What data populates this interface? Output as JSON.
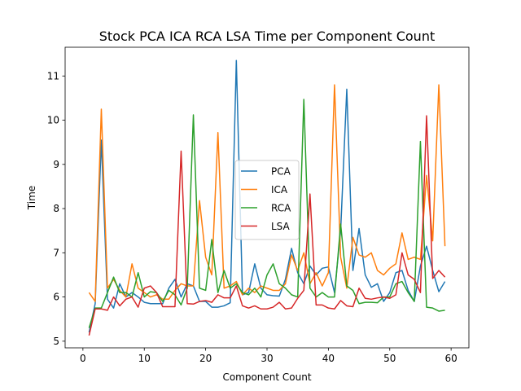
{
  "chart_data": {
    "type": "line",
    "title": "Stock PCA ICA RCA LSA Time per Component Count",
    "xlabel": "Component Count",
    "ylabel": "Time",
    "xlim": [
      -2.9,
      62.9
    ],
    "ylim": [
      4.85,
      11.65
    ],
    "xticks": [
      0,
      10,
      20,
      30,
      40,
      50,
      60
    ],
    "yticks": [
      5,
      6,
      7,
      8,
      9,
      10,
      11
    ],
    "grid": false,
    "legend_position": "center",
    "x": [
      1,
      2,
      3,
      4,
      5,
      6,
      7,
      8,
      9,
      10,
      11,
      12,
      13,
      14,
      15,
      16,
      17,
      18,
      19,
      20,
      21,
      22,
      23,
      24,
      25,
      26,
      27,
      28,
      29,
      30,
      31,
      32,
      33,
      34,
      35,
      36,
      37,
      38,
      39,
      40,
      41,
      42,
      43,
      44,
      45,
      46,
      47,
      48,
      49,
      50,
      51,
      52,
      53,
      54,
      55,
      56,
      57,
      58,
      59
    ],
    "series": [
      {
        "name": "PCA",
        "color": "#1f77b4",
        "values": [
          5.2,
          5.85,
          9.55,
          5.95,
          5.75,
          6.3,
          6.0,
          6.1,
          6.0,
          5.88,
          5.85,
          5.85,
          5.85,
          6.2,
          6.4,
          6.0,
          6.3,
          6.25,
          5.9,
          5.9,
          5.77,
          5.77,
          5.8,
          5.87,
          11.35,
          6.05,
          6.1,
          6.75,
          6.2,
          6.05,
          6.03,
          6.02,
          6.4,
          7.1,
          6.55,
          6.3,
          6.7,
          6.5,
          6.65,
          6.68,
          6.1,
          7.5,
          10.7,
          6.6,
          7.55,
          6.5,
          6.22,
          6.3,
          5.9,
          6.1,
          6.55,
          6.6,
          6.15,
          5.9,
          6.7,
          7.15,
          6.6,
          6.12,
          6.35
        ]
      },
      {
        "name": "ICA",
        "color": "#ff7f0e",
        "values": [
          6.1,
          5.9,
          10.25,
          6.2,
          6.4,
          6.15,
          6.0,
          6.75,
          6.2,
          6.1,
          6.0,
          6.05,
          5.95,
          5.95,
          6.15,
          6.3,
          6.25,
          6.25,
          8.18,
          6.9,
          6.5,
          9.72,
          6.2,
          6.25,
          6.35,
          6.05,
          6.2,
          6.1,
          6.25,
          6.2,
          6.15,
          6.15,
          6.3,
          6.95,
          6.6,
          7.0,
          6.3,
          6.55,
          6.25,
          6.55,
          10.8,
          6.9,
          6.2,
          7.35,
          6.95,
          6.9,
          7.0,
          6.6,
          6.5,
          6.65,
          6.75,
          7.45,
          6.85,
          6.9,
          6.85,
          8.75,
          7.27,
          10.8,
          7.15
        ]
      },
      {
        "name": "RCA",
        "color": "#2ca02c",
        "values": [
          5.3,
          5.75,
          5.75,
          6.1,
          6.45,
          6.1,
          6.1,
          6.0,
          6.55,
          6.0,
          6.12,
          6.1,
          5.9,
          6.15,
          6.05,
          5.82,
          6.2,
          10.12,
          6.2,
          6.15,
          7.3,
          6.1,
          6.6,
          6.2,
          6.3,
          6.1,
          6.05,
          6.2,
          6.0,
          6.5,
          6.75,
          6.3,
          6.2,
          6.05,
          6.0,
          10.47,
          6.2,
          6.0,
          6.1,
          6.0,
          6.0,
          7.65,
          6.25,
          6.15,
          5.85,
          5.88,
          5.88,
          5.87,
          6.0,
          6.0,
          6.3,
          6.35,
          6.1,
          5.9,
          9.52,
          5.77,
          5.75,
          5.68,
          5.7
        ]
      },
      {
        "name": "LSA",
        "color": "#d62728",
        "values": [
          5.13,
          5.73,
          5.73,
          5.7,
          6.0,
          5.8,
          5.95,
          6.0,
          5.77,
          6.2,
          6.25,
          6.1,
          5.78,
          5.78,
          5.78,
          9.3,
          5.85,
          5.84,
          5.9,
          5.92,
          5.88,
          6.05,
          5.98,
          5.98,
          6.25,
          5.8,
          5.75,
          5.8,
          5.73,
          5.73,
          5.77,
          5.88,
          5.73,
          5.75,
          5.97,
          6.15,
          8.33,
          5.82,
          5.82,
          5.75,
          5.73,
          5.92,
          5.8,
          5.78,
          6.2,
          5.97,
          5.95,
          5.98,
          6.0,
          5.97,
          6.05,
          7.0,
          6.5,
          6.4,
          6.1,
          10.1,
          6.42,
          6.6,
          6.45
        ]
      }
    ]
  }
}
